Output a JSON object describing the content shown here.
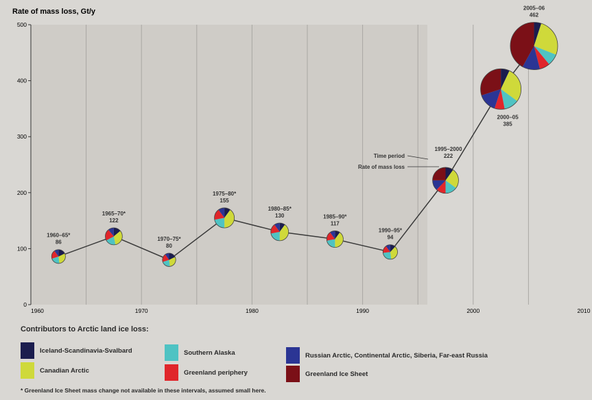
{
  "chart_data": {
    "type": "scatter",
    "ylabel": "Rate of mass loss, Gt/y",
    "xlim": [
      1960,
      2010
    ],
    "ylim": [
      0,
      500
    ],
    "x_ticks": [
      "1960",
      "1970",
      "1980",
      "1990",
      "2000",
      "2010"
    ],
    "y_ticks": [
      "0",
      "100",
      "200",
      "300",
      "400",
      "500"
    ],
    "grid": "vertical",
    "points": [
      {
        "period": "1960–65*",
        "x": 1962.5,
        "value": 86,
        "label": "86"
      },
      {
        "period": "1965–70*",
        "x": 1967.5,
        "value": 122,
        "label": "122"
      },
      {
        "period": "1970–75*",
        "x": 1972.5,
        "value": 80,
        "label": "80"
      },
      {
        "period": "1975–80*",
        "x": 1977.5,
        "value": 155,
        "label": "155"
      },
      {
        "period": "1980–85*",
        "x": 1982.5,
        "value": 130,
        "label": "130"
      },
      {
        "period": "1985–90*",
        "x": 1987.5,
        "value": 117,
        "label": "117"
      },
      {
        "period": "1990–95*",
        "x": 1992.5,
        "value": 94,
        "label": "94"
      },
      {
        "period": "1995–2000",
        "x": 1997.5,
        "value": 222,
        "label": "222"
      },
      {
        "period": "2000–05",
        "x": 2002.5,
        "value": 385,
        "label": "385"
      },
      {
        "period": "2005–06",
        "x": 2005.5,
        "value": 462,
        "label": "462"
      }
    ],
    "pie_shares": [
      [
        0.18,
        0.3,
        0.22,
        0.2,
        0.1,
        0.0
      ],
      [
        0.14,
        0.33,
        0.2,
        0.22,
        0.11,
        0.0
      ],
      [
        0.18,
        0.3,
        0.22,
        0.2,
        0.1,
        0.0
      ],
      [
        0.1,
        0.4,
        0.22,
        0.18,
        0.1,
        0.0
      ],
      [
        0.1,
        0.4,
        0.22,
        0.18,
        0.1,
        0.0
      ],
      [
        0.1,
        0.4,
        0.22,
        0.18,
        0.1,
        0.0
      ],
      [
        0.12,
        0.36,
        0.25,
        0.17,
        0.1,
        0.0
      ],
      [
        0.1,
        0.25,
        0.15,
        0.12,
        0.13,
        0.25
      ],
      [
        0.07,
        0.28,
        0.12,
        0.08,
        0.15,
        0.3
      ],
      [
        0.05,
        0.26,
        0.08,
        0.07,
        0.12,
        0.42
      ]
    ],
    "annotation": {
      "period_label": "Time period",
      "rate_label": "Rate of mass loss"
    }
  },
  "legend": {
    "title": "Contributors to Arctic land ice loss:",
    "items": [
      {
        "label": "Iceland-Scandinavia-Svalbard",
        "color": "#1b1d4e"
      },
      {
        "label": "Canadian Arctic",
        "color": "#cfd93a"
      },
      {
        "label": "Southern Alaska",
        "color": "#4fc3c3"
      },
      {
        "label": "Greenland periphery",
        "color": "#e0262b"
      },
      {
        "label": "Russian Arctic, Continental Arctic, Siberia, Far-east Russia",
        "color": "#2b3594"
      },
      {
        "label": "Greenland Ice Sheet",
        "color": "#7b1017"
      }
    ]
  },
  "footnote": "* Greenland Ice Sheet mass change not available in these intervals, assumed small here."
}
